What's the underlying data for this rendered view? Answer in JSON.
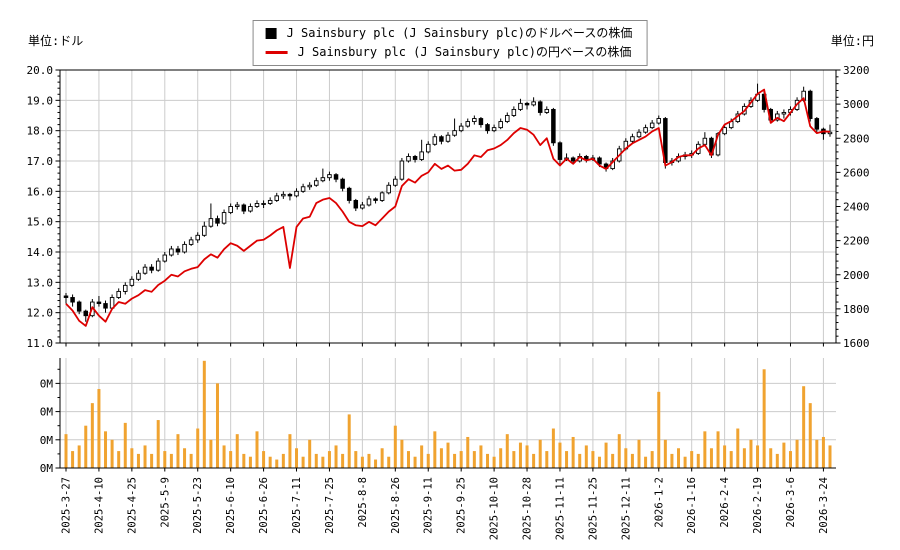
{
  "header": {
    "left_axis_unit": "単位:ドル",
    "right_axis_unit": "単位:円",
    "legend": [
      {
        "marker": "black-square",
        "label": "J Sainsbury plc (J Sainsbury plc)のドルベースの株価"
      },
      {
        "marker": "red-line",
        "label": "J Sainsbury plc (J Sainsbury plc)の円ベースの株価"
      }
    ]
  },
  "colors": {
    "grid": "#cccccc",
    "spine": "#000000",
    "candle_up": "#ffffff",
    "candle_down": "#000000",
    "candle_outline": "#000000",
    "yen_line": "#dd0000",
    "volume_bar": "#f0a330"
  },
  "chart_data": [
    {
      "type": "candlestick",
      "title": "J Sainsbury plc dollar-base candlesticks with yen-base line",
      "left_axis": {
        "min": 11.0,
        "max": 20.0,
        "tick_values": [
          20.0,
          19.0,
          18.0,
          17.0,
          16.0,
          15.0,
          14.0,
          13.0,
          12.0,
          11.0
        ],
        "tick_labels": [
          "20.0",
          "19.0",
          "18.0",
          "17.0",
          "16.0",
          "15.0",
          "14.0",
          "13.0",
          "12.0",
          "11.0"
        ],
        "minor_step": 0.2
      },
      "right_axis": {
        "min": 1600,
        "max": 3200,
        "tick_values": [
          3200,
          3000,
          2800,
          2600,
          2400,
          2200,
          2000,
          1800,
          1600
        ],
        "tick_labels": [
          "3200",
          "3000",
          "2800",
          "2600",
          "2400",
          "2200",
          "2000",
          "1800",
          "1600"
        ],
        "minor_step": 40
      },
      "x_tick_labels": [
        "2025-3-27",
        "2025-4-10",
        "2025-4-25",
        "2025-5-9",
        "2025-5-23",
        "2025-6-10",
        "2025-6-26",
        "2025-7-11",
        "2025-7-25",
        "2025-8-8",
        "2025-8-26",
        "2025-9-11",
        "2025-9-25",
        "2025-10-10",
        "2025-10-28",
        "2025-11-11",
        "2025-11-25",
        "2025-12-11",
        "2026-1-2",
        "2026-1-16",
        "2026-2-4",
        "2026-2-19",
        "2026-3-6",
        "2026-3-24"
      ],
      "x_tick_interval": 5,
      "series": [
        {
          "name": "J Sainsbury plc (J Sainsbury plc)のドルベースの株価",
          "type": "candlestick",
          "unit": "ドル",
          "ohlc": [
            [
              12.55,
              12.65,
              12.3,
              12.5
            ],
            [
              12.5,
              12.6,
              12.2,
              12.35
            ],
            [
              12.35,
              12.4,
              11.95,
              12.05
            ],
            [
              12.05,
              12.1,
              11.7,
              11.9
            ],
            [
              11.9,
              12.45,
              11.85,
              12.35
            ],
            [
              12.35,
              12.55,
              12.2,
              12.3
            ],
            [
              12.3,
              12.4,
              12.0,
              12.15
            ],
            [
              12.15,
              12.6,
              12.1,
              12.5
            ],
            [
              12.5,
              12.8,
              12.45,
              12.7
            ],
            [
              12.7,
              13.0,
              12.6,
              12.9
            ],
            [
              12.9,
              13.2,
              12.85,
              13.1
            ],
            [
              13.1,
              13.4,
              13.05,
              13.3
            ],
            [
              13.3,
              13.6,
              13.25,
              13.5
            ],
            [
              13.5,
              13.6,
              13.3,
              13.4
            ],
            [
              13.4,
              13.8,
              13.35,
              13.7
            ],
            [
              13.7,
              14.0,
              13.65,
              13.9
            ],
            [
              13.9,
              14.2,
              13.85,
              14.1
            ],
            [
              14.1,
              14.2,
              13.9,
              14.0
            ],
            [
              14.0,
              14.35,
              13.95,
              14.25
            ],
            [
              14.25,
              14.5,
              14.2,
              14.4
            ],
            [
              14.4,
              14.65,
              14.3,
              14.55
            ],
            [
              14.55,
              15.0,
              14.5,
              14.85
            ],
            [
              14.85,
              15.6,
              14.8,
              15.1
            ],
            [
              15.1,
              15.2,
              14.85,
              14.95
            ],
            [
              14.95,
              15.4,
              14.9,
              15.3
            ],
            [
              15.3,
              15.6,
              15.25,
              15.5
            ],
            [
              15.5,
              15.65,
              15.4,
              15.55
            ],
            [
              15.55,
              15.6,
              15.25,
              15.35
            ],
            [
              15.35,
              15.6,
              15.3,
              15.5
            ],
            [
              15.5,
              15.7,
              15.45,
              15.6
            ],
            [
              15.6,
              15.7,
              15.45,
              15.6
            ],
            [
              15.6,
              15.8,
              15.55,
              15.7
            ],
            [
              15.7,
              15.95,
              15.65,
              15.85
            ],
            [
              15.85,
              16.0,
              15.75,
              15.9
            ],
            [
              15.9,
              15.95,
              15.7,
              15.85
            ],
            [
              15.85,
              16.1,
              15.8,
              16.0
            ],
            [
              16.0,
              16.25,
              15.95,
              16.15
            ],
            [
              16.15,
              16.3,
              16.05,
              16.2
            ],
            [
              16.2,
              16.45,
              16.15,
              16.35
            ],
            [
              16.35,
              16.75,
              16.3,
              16.45
            ],
            [
              16.45,
              16.65,
              16.35,
              16.55
            ],
            [
              16.55,
              16.6,
              16.3,
              16.4
            ],
            [
              16.4,
              16.45,
              16.0,
              16.1
            ],
            [
              16.1,
              16.15,
              15.6,
              15.7
            ],
            [
              15.7,
              15.75,
              15.35,
              15.45
            ],
            [
              15.45,
              15.65,
              15.4,
              15.55
            ],
            [
              15.55,
              15.85,
              15.5,
              15.75
            ],
            [
              15.75,
              15.8,
              15.6,
              15.7
            ],
            [
              15.7,
              16.0,
              15.65,
              15.95
            ],
            [
              15.95,
              16.3,
              15.9,
              16.2
            ],
            [
              16.2,
              16.5,
              16.15,
              16.4
            ],
            [
              16.4,
              17.1,
              16.35,
              17.0
            ],
            [
              17.0,
              17.25,
              16.95,
              17.15
            ],
            [
              17.15,
              17.2,
              16.95,
              17.05
            ],
            [
              17.05,
              17.7,
              17.0,
              17.3
            ],
            [
              17.3,
              17.65,
              17.25,
              17.55
            ],
            [
              17.55,
              17.9,
              17.5,
              17.8
            ],
            [
              17.8,
              17.85,
              17.55,
              17.65
            ],
            [
              17.65,
              17.95,
              17.6,
              17.85
            ],
            [
              17.85,
              18.4,
              17.8,
              18.0
            ],
            [
              18.0,
              18.25,
              17.95,
              18.15
            ],
            [
              18.15,
              18.4,
              18.1,
              18.3
            ],
            [
              18.3,
              18.5,
              18.2,
              18.4
            ],
            [
              18.4,
              18.45,
              18.1,
              18.2
            ],
            [
              18.2,
              18.25,
              17.9,
              18.0
            ],
            [
              18.0,
              18.2,
              17.95,
              18.1
            ],
            [
              18.1,
              18.4,
              18.05,
              18.3
            ],
            [
              18.3,
              18.6,
              18.25,
              18.5
            ],
            [
              18.5,
              18.8,
              18.45,
              18.7
            ],
            [
              18.7,
              19.05,
              18.65,
              18.9
            ],
            [
              18.9,
              18.95,
              18.7,
              18.85
            ],
            [
              18.85,
              19.1,
              18.8,
              18.95
            ],
            [
              18.95,
              19.0,
              18.5,
              18.6
            ],
            [
              18.6,
              18.8,
              18.55,
              18.7
            ],
            [
              18.7,
              18.75,
              17.5,
              17.6
            ],
            [
              17.6,
              17.65,
              16.9,
              17.05
            ],
            [
              17.05,
              17.25,
              17.0,
              17.1
            ],
            [
              17.1,
              17.15,
              16.9,
              17.0
            ],
            [
              17.0,
              17.25,
              16.95,
              17.15
            ],
            [
              17.15,
              17.2,
              16.95,
              17.05
            ],
            [
              17.05,
              17.2,
              17.0,
              17.1
            ],
            [
              17.1,
              17.15,
              16.8,
              16.9
            ],
            [
              16.9,
              16.95,
              16.65,
              16.75
            ],
            [
              16.75,
              17.1,
              16.7,
              17.0
            ],
            [
              17.0,
              17.5,
              16.95,
              17.4
            ],
            [
              17.4,
              17.75,
              17.35,
              17.65
            ],
            [
              17.65,
              17.9,
              17.6,
              17.8
            ],
            [
              17.8,
              18.05,
              17.75,
              17.95
            ],
            [
              17.95,
              18.2,
              17.9,
              18.1
            ],
            [
              18.1,
              18.35,
              18.05,
              18.25
            ],
            [
              18.25,
              18.5,
              18.2,
              18.4
            ],
            [
              18.4,
              18.45,
              16.75,
              16.95
            ],
            [
              16.95,
              17.1,
              16.85,
              17.0
            ],
            [
              17.0,
              17.25,
              16.95,
              17.15
            ],
            [
              17.15,
              17.3,
              17.05,
              17.2
            ],
            [
              17.2,
              17.35,
              17.1,
              17.25
            ],
            [
              17.25,
              17.65,
              17.2,
              17.55
            ],
            [
              17.55,
              17.95,
              17.5,
              17.75
            ],
            [
              17.75,
              17.8,
              17.1,
              17.2
            ],
            [
              17.2,
              17.95,
              17.15,
              17.9
            ],
            [
              17.9,
              18.2,
              17.85,
              18.1
            ],
            [
              18.1,
              18.4,
              18.05,
              18.3
            ],
            [
              18.3,
              18.65,
              18.25,
              18.55
            ],
            [
              18.55,
              18.9,
              18.5,
              18.8
            ],
            [
              18.8,
              19.1,
              18.75,
              19.0
            ],
            [
              19.0,
              19.55,
              18.95,
              19.2
            ],
            [
              19.2,
              19.3,
              18.6,
              18.7
            ],
            [
              18.7,
              18.75,
              18.25,
              18.35
            ],
            [
              18.35,
              18.65,
              18.3,
              18.55
            ],
            [
              18.55,
              18.7,
              18.4,
              18.6
            ],
            [
              18.6,
              18.8,
              18.5,
              18.7
            ],
            [
              18.7,
              19.1,
              18.65,
              19.0
            ],
            [
              19.0,
              19.45,
              18.95,
              19.3
            ],
            [
              19.3,
              19.35,
              18.3,
              18.4
            ],
            [
              18.4,
              18.45,
              17.9,
              18.05
            ],
            [
              18.05,
              18.1,
              17.7,
              17.9
            ],
            [
              17.9,
              18.2,
              17.8,
              17.95
            ]
          ]
        },
        {
          "name": "J Sainsbury plc (J Sainsbury plc)の円ベースの株価",
          "type": "line",
          "unit": "円",
          "values": [
            1830,
            1790,
            1730,
            1700,
            1810,
            1760,
            1725,
            1800,
            1840,
            1830,
            1860,
            1880,
            1910,
            1900,
            1940,
            1965,
            2000,
            1990,
            2020,
            2035,
            2045,
            2090,
            2120,
            2100,
            2150,
            2185,
            2170,
            2140,
            2170,
            2200,
            2205,
            2230,
            2260,
            2280,
            2040,
            2280,
            2330,
            2340,
            2420,
            2440,
            2450,
            2420,
            2370,
            2310,
            2290,
            2285,
            2310,
            2290,
            2330,
            2370,
            2400,
            2520,
            2560,
            2540,
            2580,
            2600,
            2650,
            2620,
            2640,
            2610,
            2615,
            2650,
            2700,
            2690,
            2730,
            2740,
            2760,
            2790,
            2830,
            2860,
            2850,
            2820,
            2760,
            2800,
            2680,
            2640,
            2680,
            2650,
            2690,
            2670,
            2680,
            2640,
            2620,
            2660,
            2700,
            2740,
            2770,
            2790,
            2810,
            2840,
            2860,
            2640,
            2660,
            2690,
            2700,
            2700,
            2740,
            2760,
            2700,
            2820,
            2880,
            2900,
            2930,
            2960,
            3010,
            3060,
            3085,
            2890,
            2920,
            2900,
            2950,
            3000,
            3035,
            2870,
            2830,
            2840,
            2838
          ]
        }
      ]
    },
    {
      "type": "bar",
      "title": "volume",
      "unit": "M",
      "ymax": 0.39,
      "tick_values": [
        0,
        0.1,
        0.2,
        0.3
      ],
      "tick_label": "0M",
      "values": [
        0.12,
        0.06,
        0.08,
        0.15,
        0.23,
        0.28,
        0.13,
        0.1,
        0.06,
        0.16,
        0.07,
        0.05,
        0.08,
        0.05,
        0.17,
        0.06,
        0.05,
        0.12,
        0.07,
        0.05,
        0.14,
        0.38,
        0.1,
        0.3,
        0.08,
        0.06,
        0.12,
        0.05,
        0.04,
        0.13,
        0.06,
        0.04,
        0.03,
        0.05,
        0.12,
        0.07,
        0.04,
        0.1,
        0.05,
        0.04,
        0.06,
        0.08,
        0.05,
        0.19,
        0.06,
        0.04,
        0.05,
        0.03,
        0.07,
        0.04,
        0.15,
        0.1,
        0.06,
        0.04,
        0.08,
        0.05,
        0.13,
        0.07,
        0.09,
        0.05,
        0.06,
        0.11,
        0.06,
        0.08,
        0.05,
        0.04,
        0.07,
        0.12,
        0.06,
        0.09,
        0.08,
        0.05,
        0.1,
        0.06,
        0.14,
        0.09,
        0.06,
        0.11,
        0.05,
        0.08,
        0.06,
        0.04,
        0.09,
        0.05,
        0.12,
        0.07,
        0.05,
        0.1,
        0.04,
        0.06,
        0.27,
        0.1,
        0.05,
        0.07,
        0.04,
        0.06,
        0.05,
        0.13,
        0.07,
        0.13,
        0.08,
        0.06,
        0.14,
        0.07,
        0.1,
        0.08,
        0.35,
        0.07,
        0.05,
        0.09,
        0.06,
        0.1,
        0.29,
        0.23,
        0.1,
        0.11,
        0.08
      ]
    }
  ]
}
